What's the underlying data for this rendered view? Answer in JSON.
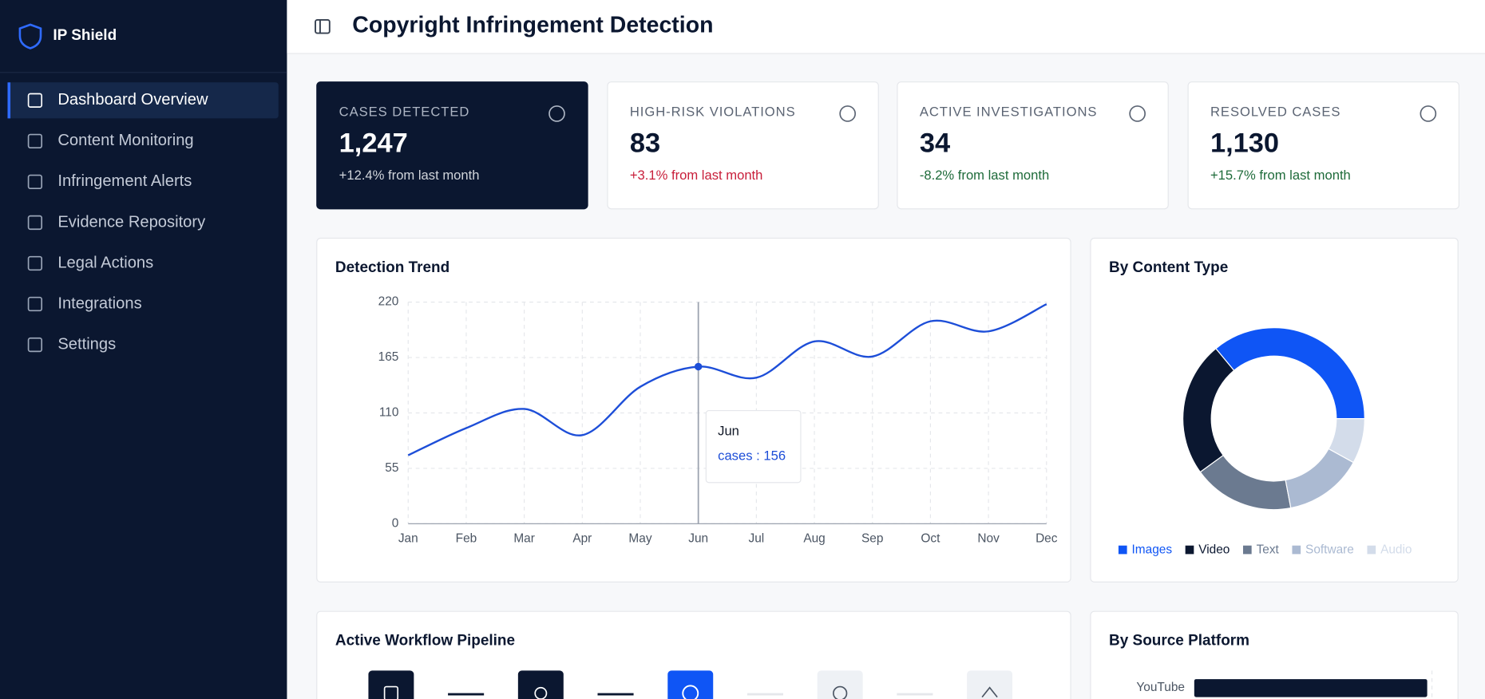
{
  "app": {
    "brand": "IP Shield",
    "title": "Copyright Infringement Detection",
    "nav": [
      "Dashboard Overview",
      "Content Monitoring",
      "Infringement Alerts",
      "Evidence Repository",
      "Legal Actions",
      "Integrations",
      "Settings"
    ],
    "cards": [
      {
        "label": "CASES DETECTED",
        "value": "1,247",
        "change": "+12.4% from last month"
      },
      {
        "label": "HIGH-RISK VIOLATIONS",
        "value": "83",
        "change": "+3.1% from last month"
      },
      {
        "label": "ACTIVE INVESTIGATIONS",
        "value": "34",
        "change": "-8.2% from last month"
      },
      {
        "label": "RESOLVED CASES",
        "value": "1,130",
        "change": "+15.7% from last month"
      }
    ],
    "pipeline_title": "Active Workflow Pipeline"
  },
  "chart_data": [
    {
      "type": "line",
      "title": "Detection Trend",
      "categories": [
        "Jan",
        "Feb",
        "Mar",
        "Apr",
        "May",
        "Jun",
        "Jul",
        "Aug",
        "Sep",
        "Oct",
        "Nov",
        "Dec"
      ],
      "values": [
        68,
        95,
        114,
        88,
        136,
        156,
        145,
        181,
        166,
        201,
        191,
        218
      ],
      "color": "#1d4ed8",
      "ylim": [
        0,
        220
      ],
      "yticks": [
        0,
        55,
        110,
        165,
        220
      ],
      "grid": true,
      "tooltip": {
        "title": "Jun",
        "text": "cases : 156"
      }
    },
    {
      "type": "pie",
      "title": "By Content Type",
      "series": [
        {
          "name": "Images",
          "color": "#0f55f5",
          "values": [
            36
          ]
        },
        {
          "name": "Video",
          "color": "#0b1730",
          "values": [
            24
          ]
        },
        {
          "name": "Text",
          "color": "#6b7a90",
          "values": [
            18
          ]
        },
        {
          "name": "Software",
          "color": "#abbad2",
          "values": [
            14
          ]
        },
        {
          "name": "Audio",
          "color": "#d3dcea",
          "values": [
            8
          ]
        }
      ]
    },
    {
      "type": "hbar",
      "title": "By Source Platform",
      "categories": [
        "YouTube"
      ],
      "values": [
        98
      ],
      "xlim": [
        0,
        100
      ],
      "color": "#0b1730"
    }
  ]
}
